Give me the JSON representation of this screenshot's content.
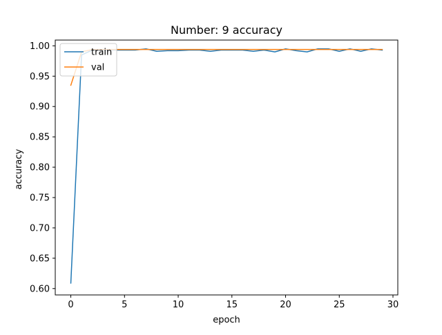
{
  "chart_data": {
    "type": "line",
    "title": "Number: 9 accuracy",
    "xlabel": "epoch",
    "ylabel": "accuracy",
    "xlim": [
      -1.45,
      30.45
    ],
    "ylim": [
      0.5895,
      1.0095
    ],
    "x_ticks": [
      0,
      5,
      10,
      15,
      20,
      25,
      30
    ],
    "x_tick_labels": [
      "0",
      "5",
      "10",
      "15",
      "20",
      "25",
      "30"
    ],
    "y_ticks": [
      0.6,
      0.65,
      0.7,
      0.75,
      0.8,
      0.85,
      0.9,
      0.95,
      1.0
    ],
    "y_tick_labels": [
      "0.60",
      "0.65",
      "0.70",
      "0.75",
      "0.80",
      "0.85",
      "0.90",
      "0.95",
      "1.00"
    ],
    "grid": false,
    "legend": {
      "placement": "upper-left"
    },
    "x": [
      0,
      1,
      2,
      3,
      4,
      5,
      6,
      7,
      8,
      9,
      10,
      11,
      12,
      13,
      14,
      15,
      16,
      17,
      18,
      19,
      20,
      21,
      22,
      23,
      24,
      25,
      26,
      27,
      28,
      29
    ],
    "series": [
      {
        "name": "train",
        "color": "#1f77b4",
        "values": [
          0.609,
          0.985,
          0.993,
          0.993,
          0.993,
          0.993,
          0.993,
          0.995,
          0.991,
          0.992,
          0.992,
          0.993,
          0.993,
          0.991,
          0.993,
          0.993,
          0.993,
          0.991,
          0.993,
          0.99,
          0.995,
          0.992,
          0.99,
          0.995,
          0.995,
          0.991,
          0.995,
          0.991,
          0.995,
          0.993
        ]
      },
      {
        "name": "val",
        "color": "#ff7f0e",
        "values": [
          0.935,
          0.99,
          0.994,
          0.994,
          0.994,
          0.994,
          0.994,
          0.994,
          0.994,
          0.994,
          0.994,
          0.994,
          0.994,
          0.994,
          0.994,
          0.994,
          0.994,
          0.994,
          0.994,
          0.994,
          0.994,
          0.994,
          0.994,
          0.994,
          0.994,
          0.994,
          0.994,
          0.994,
          0.994,
          0.994
        ]
      }
    ]
  }
}
